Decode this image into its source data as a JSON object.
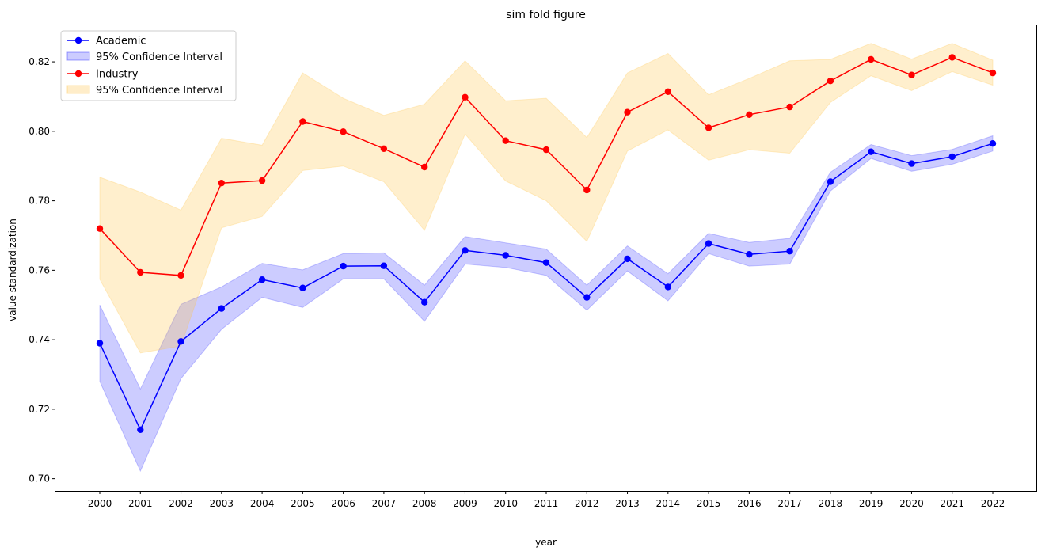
{
  "chart_data": {
    "type": "line",
    "title": "sim fold figure",
    "xlabel": "year",
    "ylabel": "value standardization",
    "ylim": [
      0.6965,
      0.8305
    ],
    "yticks": [
      0.7,
      0.72,
      0.74,
      0.76,
      0.78,
      0.8,
      0.82
    ],
    "ytick_labels": [
      "0.70",
      "0.72",
      "0.74",
      "0.76",
      "0.78",
      "0.80",
      "0.82"
    ],
    "grid": false,
    "legend_position": "top-left",
    "x": [
      "2000",
      "2001",
      "2002",
      "2003",
      "2004",
      "2005",
      "2006",
      "2007",
      "2008",
      "2009",
      "2010",
      "2011",
      "2012",
      "2013",
      "2014",
      "2015",
      "2016",
      "2017",
      "2018",
      "2019",
      "2020",
      "2021",
      "2022"
    ],
    "series": [
      {
        "name": "Academic",
        "color": "#0000ff",
        "band_color": "#0000ff",
        "band_label": "95% Confidence Interval",
        "values": [
          0.739,
          0.7141,
          0.7395,
          0.749,
          0.7573,
          0.7549,
          0.7612,
          0.7613,
          0.7508,
          0.7657,
          0.7643,
          0.7622,
          0.7522,
          0.7633,
          0.7552,
          0.7677,
          0.7646,
          0.7655,
          0.7855,
          0.7941,
          0.7907,
          0.7927,
          0.7965
        ],
        "lower": [
          0.728,
          0.7022,
          0.7288,
          0.743,
          0.7522,
          0.7493,
          0.7575,
          0.7575,
          0.7453,
          0.7618,
          0.7608,
          0.7585,
          0.7485,
          0.7598,
          0.7512,
          0.7648,
          0.7612,
          0.7618,
          0.7828,
          0.7922,
          0.7885,
          0.7905,
          0.7943
        ],
        "upper": [
          0.75,
          0.7258,
          0.7502,
          0.7552,
          0.762,
          0.7601,
          0.7648,
          0.765,
          0.7557,
          0.7697,
          0.7679,
          0.7661,
          0.7557,
          0.767,
          0.759,
          0.7706,
          0.768,
          0.7692,
          0.7882,
          0.7962,
          0.793,
          0.7948,
          0.7987
        ]
      },
      {
        "name": "Industry",
        "color": "#ff0000",
        "band_color": "#ffc44d",
        "band_label": "95% Confidence Interval",
        "values": [
          0.772,
          0.7594,
          0.7585,
          0.7851,
          0.7858,
          0.8028,
          0.7999,
          0.795,
          0.7897,
          0.8098,
          0.7973,
          0.7947,
          0.7831,
          0.8055,
          0.8114,
          0.801,
          0.8048,
          0.807,
          0.8145,
          0.8207,
          0.8162,
          0.8213,
          0.8168
        ],
        "lower": [
          0.7574,
          0.7362,
          0.7382,
          0.7722,
          0.7755,
          0.7887,
          0.79,
          0.7855,
          0.7715,
          0.7992,
          0.7857,
          0.78,
          0.7683,
          0.7943,
          0.8004,
          0.7917,
          0.7947,
          0.7937,
          0.8083,
          0.816,
          0.8117,
          0.8172,
          0.8133
        ],
        "upper": [
          0.7868,
          0.7825,
          0.7773,
          0.798,
          0.796,
          0.8168,
          0.8095,
          0.8046,
          0.8078,
          0.8203,
          0.8088,
          0.8095,
          0.7982,
          0.8168,
          0.8224,
          0.8105,
          0.8152,
          0.8203,
          0.8207,
          0.8253,
          0.8208,
          0.8253,
          0.8205
        ]
      }
    ]
  }
}
